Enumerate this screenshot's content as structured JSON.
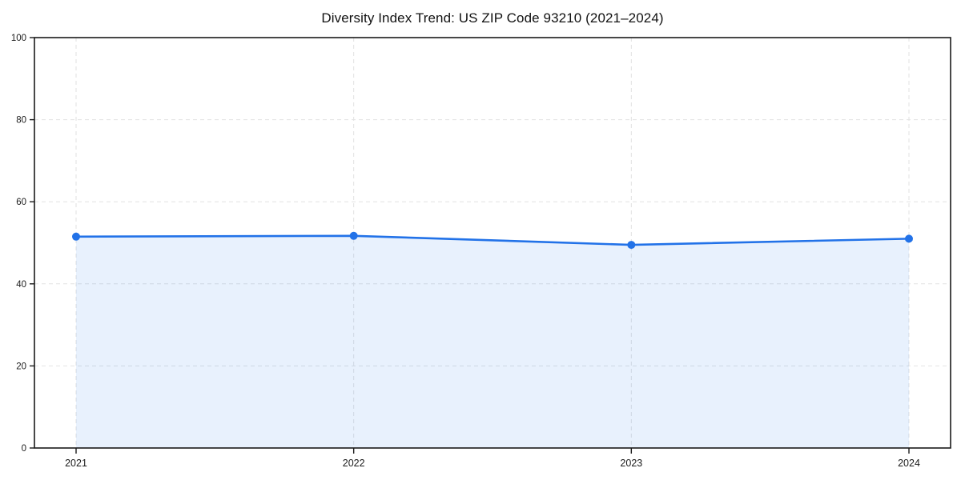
{
  "chart_data": {
    "type": "area",
    "title": "Diversity Index Trend: US ZIP Code 93210 (2021–2024)",
    "series_name": "Diversity Index",
    "x": [
      "2021",
      "2022",
      "2023",
      "2024"
    ],
    "values": [
      51.5,
      51.7,
      49.5,
      51.0
    ],
    "xlabel": "",
    "ylabel": "",
    "ylim": [
      0,
      100
    ],
    "yticks": [
      0,
      20,
      40,
      60,
      80,
      100
    ],
    "xticks": [
      "2021",
      "2022",
      "2023",
      "2024"
    ],
    "grid": "dashed, both axes",
    "legend_position": "none",
    "colors": {
      "line": "#2272e8",
      "marker": "#2272e8",
      "fill": "#2272e8",
      "fill_opacity": 0.1,
      "gridline": "#e2e2e2",
      "frame": "#1a1a1a",
      "tick_text": "#1a1a1a",
      "background": "#ffffff"
    }
  }
}
